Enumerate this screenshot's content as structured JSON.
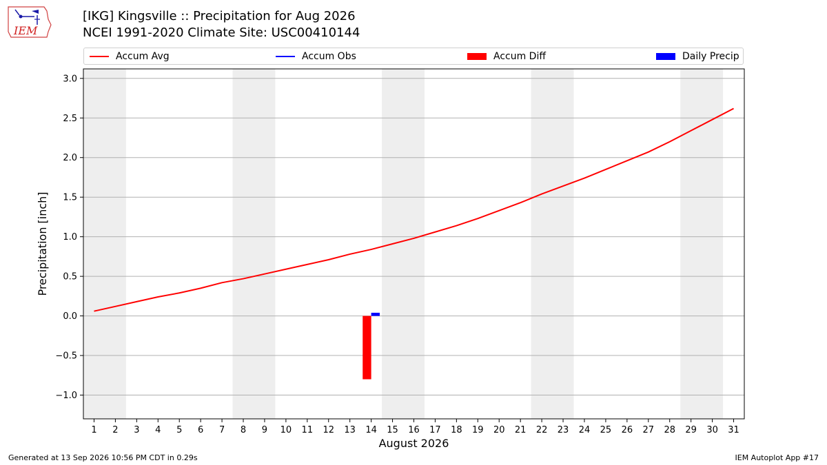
{
  "header": {
    "title_line1": "[IKG] Kingsville :: Precipitation for Aug 2026",
    "title_line2": "NCEI 1991-2020 Climate Site: USC00410144"
  },
  "logo": {
    "text": "IEM",
    "icon": "iem-logo-icon"
  },
  "legend": {
    "placement": "top",
    "items": [
      {
        "label": "Accum Avg",
        "kind": "line",
        "color": "#ff0000"
      },
      {
        "label": "Accum Obs",
        "kind": "line",
        "color": "#0000ff"
      },
      {
        "label": "Accum Diff",
        "kind": "patch",
        "color": "#ff0000"
      },
      {
        "label": "Daily Precip",
        "kind": "patch",
        "color": "#0000ff"
      }
    ]
  },
  "footer": {
    "left": "Generated at 13 Sep 2026 10:56 PM CDT in 0.29s",
    "right": "IEM Autoplot App #17"
  },
  "chart_data": {
    "type": "line",
    "xlabel": "August 2026",
    "ylabel": "Precipitation [inch]",
    "xlim": [
      0.5,
      31.5
    ],
    "ylim": [
      -1.3,
      3.12
    ],
    "yticks": [
      -1.0,
      -0.5,
      0.0,
      0.5,
      1.0,
      1.5,
      2.0,
      2.5,
      3.0
    ],
    "ytick_labels": [
      "−1.0",
      "−0.5",
      "0.0",
      "0.5",
      "1.0",
      "1.5",
      "2.0",
      "2.5",
      "3.0"
    ],
    "xticks": [
      1,
      2,
      3,
      4,
      5,
      6,
      7,
      8,
      9,
      10,
      11,
      12,
      13,
      14,
      15,
      16,
      17,
      18,
      19,
      20,
      21,
      22,
      23,
      24,
      25,
      26,
      27,
      28,
      29,
      30,
      31
    ],
    "grid": "horizontal",
    "weekend_shading": [
      [
        0.5,
        2.5
      ],
      [
        7.5,
        9.5
      ],
      [
        14.5,
        16.5
      ],
      [
        21.5,
        23.5
      ],
      [
        28.5,
        30.5
      ]
    ],
    "shade_color": "#eeeeee",
    "series": [
      {
        "name": "Accum Avg",
        "kind": "line",
        "color": "#ff0000",
        "x": [
          1,
          2,
          3,
          4,
          5,
          6,
          7,
          8,
          9,
          10,
          11,
          12,
          13,
          14,
          15,
          16,
          17,
          18,
          19,
          20,
          21,
          22,
          23,
          24,
          25,
          26,
          27,
          28,
          29,
          30,
          31
        ],
        "y": [
          0.06,
          0.12,
          0.18,
          0.24,
          0.29,
          0.35,
          0.42,
          0.47,
          0.53,
          0.59,
          0.65,
          0.71,
          0.78,
          0.84,
          0.91,
          0.98,
          1.06,
          1.14,
          1.23,
          1.33,
          1.43,
          1.54,
          1.64,
          1.74,
          1.85,
          1.96,
          2.07,
          2.2,
          2.34,
          2.48,
          2.62
        ]
      },
      {
        "name": "Accum Obs",
        "kind": "line",
        "color": "#0000ff",
        "x": [],
        "y": []
      },
      {
        "name": "Accum Diff",
        "kind": "bar",
        "color": "#ff0000",
        "x": [
          13.8
        ],
        "y": [
          -0.8
        ],
        "bar_width": 0.4
      },
      {
        "name": "Daily Precip",
        "kind": "bar",
        "color": "#0000ff",
        "x": [
          14.2
        ],
        "y": [
          0.04
        ],
        "bar_width": 0.4
      }
    ]
  }
}
